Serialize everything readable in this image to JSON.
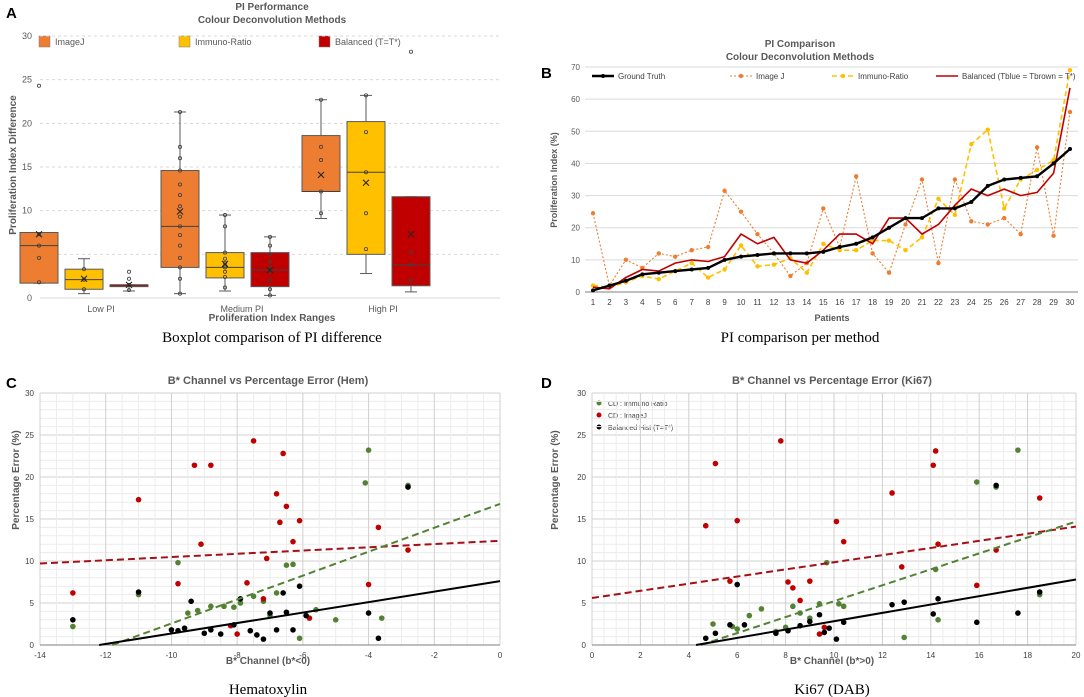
{
  "panels": [
    {
      "letter": "A",
      "caption": "Boxplot comparison of PI difference"
    },
    {
      "letter": "B",
      "caption": "PI comparison per method"
    },
    {
      "letter": "C",
      "caption": "Hematoxylin"
    },
    {
      "letter": "D",
      "caption": "Ki67 (DAB)"
    }
  ],
  "colors": {
    "imagej": "#ed7d31",
    "immuno": "#ffc000",
    "balanced": "#c00000",
    "truth": "#000000",
    "green": "#548235",
    "red": "#c00000",
    "black": "#000000",
    "darkred": "#a50f15",
    "grid": "#d9d9d9"
  },
  "chart_data": [
    {
      "type": "box",
      "title": "PI Performance",
      "subtitle": "Colour Deconvolution Methods",
      "xlabel": "Proliferation Index Ranges",
      "ylabel": "Proliferation Index Difference",
      "ylim": [
        0,
        30
      ],
      "yticks": [
        0,
        5,
        10,
        15,
        20,
        25,
        30
      ],
      "categories": [
        "Low PI",
        "Medium PI",
        "High PI"
      ],
      "legend": [
        "ImageJ",
        "Immuno-Ratio",
        "Balanced (T=T*)"
      ],
      "boxes": [
        {
          "group": 0,
          "series": 0,
          "min": 1.7,
          "q1": 1.7,
          "median": 6.0,
          "q3": 7.5,
          "max": 7.5,
          "mean": 7.3,
          "points": [
            1.8,
            4.6,
            6.0,
            7.3,
            24.3
          ]
        },
        {
          "group": 0,
          "series": 1,
          "min": 0.5,
          "q1": 1.0,
          "median": 2.1,
          "q3": 3.3,
          "max": 4.5,
          "mean": 2.2,
          "points": [
            1.0,
            2.1,
            3.3
          ]
        },
        {
          "group": 0,
          "series": 2,
          "min": 0.8,
          "q1": 1.3,
          "median": 1.5,
          "q3": 1.5,
          "max": 1.5,
          "mean": 1.5,
          "points": [
            0.9,
            1.5,
            2.2,
            3.0
          ]
        },
        {
          "group": 1,
          "series": 0,
          "min": 0.5,
          "q1": 3.5,
          "median": 8.2,
          "q3": 14.6,
          "max": 21.3,
          "mean": 9.9,
          "points": [
            0.5,
            2.2,
            3.5,
            4.6,
            6.0,
            7.2,
            8.2,
            9.3,
            10.5,
            11.8,
            13.0,
            14.6,
            16.0,
            17.3,
            21.3
          ]
        },
        {
          "group": 1,
          "series": 1,
          "min": 0.8,
          "q1": 2.3,
          "median": 3.5,
          "q3": 5.2,
          "max": 9.5,
          "mean": 3.9,
          "points": [
            1.2,
            2.4,
            3.0,
            3.5,
            4.0,
            4.5,
            5.2,
            8.2,
            9.5
          ]
        },
        {
          "group": 1,
          "series": 2,
          "min": 0.3,
          "q1": 1.3,
          "median": 3.2,
          "q3": 5.2,
          "max": 7.0,
          "mean": 3.2,
          "points": [
            0.3,
            1.0,
            2.0,
            3.0,
            3.5,
            4.2,
            5.0,
            6.0,
            7.0
          ]
        },
        {
          "group": 2,
          "series": 0,
          "min": 9.1,
          "q1": 12.2,
          "median": 12.2,
          "q3": 18.6,
          "max": 22.7,
          "mean": 14.1,
          "points": [
            9.7,
            12.2,
            15.8,
            17.3,
            22.7
          ]
        },
        {
          "group": 2,
          "series": 1,
          "min": 2.8,
          "q1": 5.0,
          "median": 14.4,
          "q3": 20.2,
          "max": 23.2,
          "mean": 13.2,
          "points": [
            5.6,
            9.7,
            14.4,
            19.0,
            23.2
          ]
        },
        {
          "group": 2,
          "series": 2,
          "min": 0.7,
          "q1": 1.4,
          "median": 3.8,
          "q3": 11.6,
          "max": 11.6,
          "mean": 7.3,
          "points": [
            2.0,
            3.8,
            5.2,
            28.2
          ]
        }
      ]
    },
    {
      "type": "line",
      "title": "PI Comparison",
      "subtitle": "Colour Deconvolution Methods",
      "xlabel": "Patients",
      "ylabel": "Proliferation Index (%)",
      "ylim": [
        0,
        70
      ],
      "yticks": [
        0,
        10,
        20,
        30,
        40,
        50,
        60,
        70
      ],
      "x": [
        1,
        2,
        3,
        4,
        5,
        6,
        7,
        8,
        9,
        10,
        11,
        12,
        13,
        14,
        15,
        16,
        17,
        18,
        19,
        20,
        21,
        22,
        23,
        24,
        25,
        26,
        27,
        28,
        29,
        30
      ],
      "series": [
        {
          "name": "Ground Truth",
          "values": [
            0.5,
            2,
            3.5,
            5.5,
            6,
            6.5,
            7,
            7.5,
            10,
            11,
            11.5,
            12,
            12,
            12,
            12.5,
            14,
            15,
            17,
            20,
            23,
            23,
            26,
            26,
            28,
            33,
            35,
            35.5,
            36,
            40,
            44.5
          ]
        },
        {
          "name": "Image J",
          "values": [
            24.5,
            2,
            10,
            7.5,
            12,
            11,
            13,
            14,
            31.5,
            25,
            18,
            12,
            5,
            9,
            26,
            14,
            36,
            12,
            6,
            21,
            35,
            9,
            35,
            22,
            21,
            23,
            18,
            45,
            17.5,
            56
          ]
        },
        {
          "name": "Immuno-Ratio",
          "values": [
            2,
            1.5,
            3,
            5,
            4,
            6.5,
            9,
            4.5,
            7,
            14.5,
            8,
            8.5,
            10.5,
            6,
            15,
            13,
            13,
            16,
            16,
            13,
            17,
            29,
            24,
            46,
            50.5,
            26,
            35,
            38,
            41,
            69
          ]
        },
        {
          "name": "Balanced (Tblue = Tbrown = T*)",
          "values": [
            1.5,
            1,
            4.5,
            7,
            6.5,
            9,
            10,
            9.5,
            11,
            18,
            15,
            17,
            10,
            9,
            13,
            18,
            18,
            15,
            23,
            23,
            18,
            21,
            27,
            32,
            30,
            32,
            30,
            31,
            37,
            63.5
          ]
        }
      ]
    },
    {
      "type": "scatter",
      "title": "B* Channel vs Percentage Error (Hem)",
      "xlabel": "B* Channel   (b*<0)",
      "ylabel": "Percentage Error (%)",
      "xlim": [
        -14,
        0
      ],
      "ylim": [
        0,
        30
      ],
      "xticks": [
        -14,
        -12,
        -10,
        -8,
        -6,
        -4,
        -2,
        0
      ],
      "yticks": [
        0,
        5,
        10,
        15,
        20,
        25,
        30
      ],
      "series": [
        {
          "name": "CD : Immuno Ratio",
          "color": "green",
          "points": [
            [
              -13,
              2.2
            ],
            [
              -11,
              6
            ],
            [
              -9.8,
              9.8
            ],
            [
              -9.5,
              3.8
            ],
            [
              -9.2,
              4.1
            ],
            [
              -8.8,
              4.6
            ],
            [
              -8.4,
              4.6
            ],
            [
              -8.1,
              4.5
            ],
            [
              -7.9,
              5
            ],
            [
              -7.5,
              5.8
            ],
            [
              -7.2,
              5.2
            ],
            [
              -7,
              3.5
            ],
            [
              -6.8,
              6.2
            ],
            [
              -6.5,
              9.5
            ],
            [
              -6.3,
              9.6
            ],
            [
              -6.1,
              0.8
            ],
            [
              -5.6,
              4.2
            ],
            [
              -5,
              3
            ],
            [
              -4.1,
              19.3
            ],
            [
              -4,
              23.2
            ],
            [
              -2.8,
              19
            ],
            [
              -3.6,
              3.2
            ]
          ]
        },
        {
          "name": "CD : ImageJ",
          "color": "red",
          "points": [
            [
              -13,
              6.2
            ],
            [
              -11,
              17.3
            ],
            [
              -9.8,
              7.3
            ],
            [
              -9.3,
              21.4
            ],
            [
              -9.1,
              12
            ],
            [
              -8.8,
              21.4
            ],
            [
              -8.2,
              2.3
            ],
            [
              -8,
              1.3
            ],
            [
              -7.7,
              7.4
            ],
            [
              -7.5,
              24.3
            ],
            [
              -7.2,
              5.5
            ],
            [
              -7.1,
              10.3
            ],
            [
              -6.8,
              18
            ],
            [
              -6.7,
              14.6
            ],
            [
              -6.6,
              22.8
            ],
            [
              -6.5,
              16.5
            ],
            [
              -6.3,
              12.3
            ],
            [
              -6.1,
              14.8
            ],
            [
              -5.8,
              3.2
            ],
            [
              -4,
              7.2
            ],
            [
              -3.7,
              14
            ],
            [
              -2.8,
              11.3
            ]
          ]
        },
        {
          "name": "Balanced Hist (T=T*)",
          "color": "black",
          "points": [
            [
              -13,
              3
            ],
            [
              -11,
              6.3
            ],
            [
              -10,
              1.8
            ],
            [
              -9.8,
              1.7
            ],
            [
              -9.6,
              2
            ],
            [
              -9.4,
              5.2
            ],
            [
              -9,
              1.4
            ],
            [
              -8.8,
              1.8
            ],
            [
              -8.5,
              1.3
            ],
            [
              -8.1,
              2.4
            ],
            [
              -7.9,
              5.5
            ],
            [
              -7.6,
              1.7
            ],
            [
              -7.4,
              1.2
            ],
            [
              -7.2,
              0.7
            ],
            [
              -7,
              3.8
            ],
            [
              -6.8,
              1.8
            ],
            [
              -6.6,
              6.2
            ],
            [
              -6.5,
              3.9
            ],
            [
              -6.3,
              1.8
            ],
            [
              -6.1,
              7
            ],
            [
              -5.9,
              3.5
            ],
            [
              -4,
              3.8
            ],
            [
              -3.7,
              0.8
            ],
            [
              -2.8,
              18.8
            ]
          ]
        }
      ],
      "trendlines": [
        {
          "color": "darkred",
          "dash": true,
          "x": [
            -14,
            0
          ],
          "y": [
            9.7,
            12.4
          ]
        },
        {
          "color": "green",
          "dash": true,
          "x": [
            -11.8,
            0
          ],
          "y": [
            0,
            16.8
          ]
        },
        {
          "color": "black",
          "dash": false,
          "x": [
            -12.2,
            0
          ],
          "y": [
            0,
            7.6
          ]
        }
      ]
    },
    {
      "type": "scatter",
      "title": "B* Channel vs Percentage Error (Ki67)",
      "xlabel": "B* Channel   (b*>0)",
      "ylabel": "Percentage Error (%)",
      "xlim": [
        0,
        20
      ],
      "ylim": [
        0,
        30
      ],
      "xticks": [
        0,
        2,
        4,
        6,
        8,
        10,
        12,
        14,
        16,
        18,
        20
      ],
      "yticks": [
        0,
        5,
        10,
        15,
        20,
        25,
        30
      ],
      "legend": [
        "CD : Immuno Ratio",
        "CD : ImageJ",
        "Balanced Hist (T=T*)"
      ],
      "series": [
        {
          "name": "CD : Immuno Ratio",
          "color": "green",
          "points": [
            [
              5,
              2.5
            ],
            [
              5.8,
              2.2
            ],
            [
              6,
              1.9
            ],
            [
              6.5,
              3.5
            ],
            [
              7,
              4.3
            ],
            [
              7.6,
              1.6
            ],
            [
              8,
              2.1
            ],
            [
              8.3,
              4.6
            ],
            [
              8.6,
              3.8
            ],
            [
              9,
              3.2
            ],
            [
              9.4,
              4.9
            ],
            [
              9.7,
              9.8
            ],
            [
              10.2,
              4.9
            ],
            [
              10.4,
              4.6
            ],
            [
              12.9,
              0.9
            ],
            [
              14.2,
              9
            ],
            [
              14.3,
              3
            ],
            [
              15.9,
              19.4
            ],
            [
              16.7,
              18.8
            ],
            [
              17.6,
              23.2
            ],
            [
              18.5,
              6
            ]
          ]
        },
        {
          "name": "CD : ImageJ",
          "color": "red",
          "points": [
            [
              4.7,
              14.2
            ],
            [
              5.1,
              21.6
            ],
            [
              5.7,
              7.6
            ],
            [
              6,
              14.8
            ],
            [
              7.8,
              24.3
            ],
            [
              8.1,
              7.5
            ],
            [
              8.3,
              6.8
            ],
            [
              8.6,
              5.3
            ],
            [
              9,
              7.6
            ],
            [
              9.4,
              1.3
            ],
            [
              9.6,
              2.1
            ],
            [
              10.1,
              14.7
            ],
            [
              10.4,
              12.3
            ],
            [
              12.4,
              18.1
            ],
            [
              12.8,
              9.3
            ],
            [
              14.1,
              21.4
            ],
            [
              14.2,
              23.1
            ],
            [
              14.3,
              12
            ],
            [
              15.9,
              7.1
            ],
            [
              16.7,
              11.3
            ],
            [
              18.5,
              17.5
            ]
          ]
        },
        {
          "name": "Balanced Hist (T=T*)",
          "color": "black",
          "points": [
            [
              4.7,
              0.8
            ],
            [
              5.1,
              1.4
            ],
            [
              5.7,
              2.4
            ],
            [
              6,
              7.2
            ],
            [
              6.3,
              2.4
            ],
            [
              7.6,
              1.4
            ],
            [
              8.1,
              1.7
            ],
            [
              8.6,
              2.3
            ],
            [
              9,
              2.8
            ],
            [
              9.4,
              3.6
            ],
            [
              9.6,
              1.5
            ],
            [
              9.8,
              2
            ],
            [
              10.1,
              0.7
            ],
            [
              10.4,
              2.7
            ],
            [
              12.4,
              4.8
            ],
            [
              12.9,
              5.1
            ],
            [
              14.1,
              3.7
            ],
            [
              14.3,
              5.5
            ],
            [
              15.9,
              2.7
            ],
            [
              16.7,
              19
            ],
            [
              17.6,
              3.8
            ],
            [
              18.5,
              6.3
            ]
          ]
        }
      ],
      "trendlines": [
        {
          "color": "darkred",
          "dash": true,
          "x": [
            0,
            20
          ],
          "y": [
            5.6,
            14.1
          ]
        },
        {
          "color": "green",
          "dash": true,
          "x": [
            4.5,
            20
          ],
          "y": [
            0,
            14.7
          ]
        },
        {
          "color": "black",
          "dash": false,
          "x": [
            4.3,
            20
          ],
          "y": [
            0,
            7.8
          ]
        }
      ]
    }
  ]
}
